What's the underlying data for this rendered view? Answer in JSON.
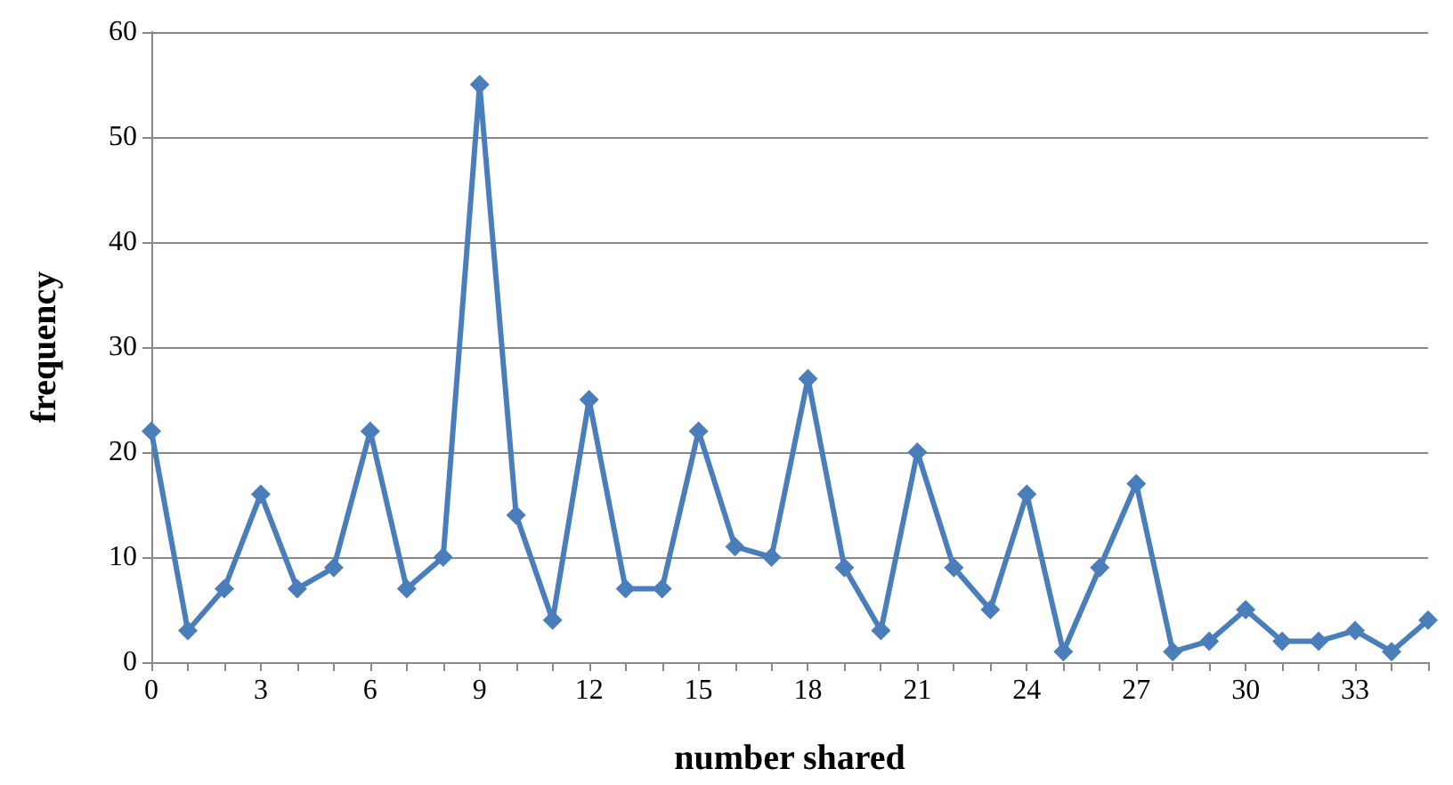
{
  "chart_data": {
    "type": "line",
    "xlabel": "number shared",
    "ylabel": "frequency",
    "categories": [
      "0",
      null,
      null,
      "3",
      null,
      null,
      "6",
      null,
      null,
      "9",
      null,
      null,
      "12",
      null,
      null,
      "15",
      null,
      null,
      "18",
      null,
      null,
      "21",
      null,
      null,
      "24",
      null,
      null,
      "27",
      null,
      null,
      "30",
      null,
      null,
      "33",
      null,
      null
    ],
    "series": [
      {
        "color": "#4a7ebb",
        "values": [
          22,
          3,
          7,
          16,
          7,
          9,
          22,
          7,
          10,
          55,
          14,
          4,
          25,
          7,
          7,
          22,
          11,
          10,
          27,
          9,
          3,
          20,
          9,
          5,
          16,
          1,
          9,
          17,
          1,
          2,
          5,
          2,
          2,
          3,
          1,
          4
        ]
      }
    ],
    "ylim": [
      0,
      60
    ],
    "yticks": [
      0,
      10,
      20,
      30,
      40,
      50,
      60
    ],
    "grid": "y",
    "marker": "diamond",
    "line_style": "solid"
  }
}
